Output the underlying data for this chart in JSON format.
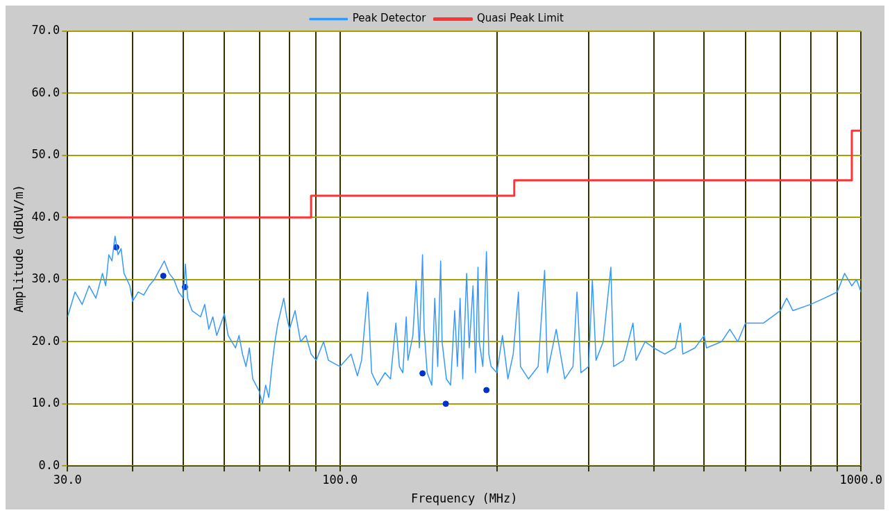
{
  "chart_data": {
    "type": "line",
    "xlabel": "Frequency (MHz)",
    "ylabel": "Amplitude (dBuV/m)",
    "log": "x",
    "grid": true,
    "legend": "top",
    "xlim": [
      30,
      1000
    ],
    "ylim": [
      0,
      70
    ],
    "xticks": [
      {
        "value": 30,
        "label": "30.0"
      },
      {
        "value": 40,
        "label": null
      },
      {
        "value": 50,
        "label": null
      },
      {
        "value": 60,
        "label": null
      },
      {
        "value": 70,
        "label": null
      },
      {
        "value": 80,
        "label": null
      },
      {
        "value": 90,
        "label": null
      },
      {
        "value": 100,
        "label": "100.0"
      },
      {
        "value": 200,
        "label": null
      },
      {
        "value": 300,
        "label": null
      },
      {
        "value": 400,
        "label": null
      },
      {
        "value": 500,
        "label": null
      },
      {
        "value": 600,
        "label": null
      },
      {
        "value": 700,
        "label": null
      },
      {
        "value": 800,
        "label": null
      },
      {
        "value": 900,
        "label": null
      },
      {
        "value": 1000,
        "label": "1000.0"
      }
    ],
    "yticks": [
      {
        "value": 0,
        "label": "0.0"
      },
      {
        "value": 10,
        "label": "10.0"
      },
      {
        "value": 20,
        "label": "20.0"
      },
      {
        "value": 30,
        "label": "30.0"
      },
      {
        "value": 40,
        "label": "40.0"
      },
      {
        "value": 50,
        "label": "50.0"
      },
      {
        "value": 60,
        "label": "60.0"
      },
      {
        "value": 70,
        "label": "70.0"
      }
    ],
    "series": [
      {
        "name": "Peak Detector",
        "type": "line",
        "color": "#3399ff",
        "marker": "none",
        "x": [
          30,
          31,
          32,
          33,
          34,
          35,
          35.5,
          36,
          36.5,
          37,
          37.5,
          38,
          38.5,
          39.5,
          40,
          41,
          42,
          43,
          44,
          45,
          46,
          47,
          48,
          49,
          50,
          50.5,
          51,
          52,
          54,
          55,
          56,
          57,
          58,
          60,
          61,
          63,
          64,
          65,
          66,
          67,
          68,
          70,
          71,
          72,
          73,
          74,
          75,
          76,
          78,
          79,
          80,
          82,
          84,
          86,
          88,
          90,
          93,
          95,
          100,
          105,
          108,
          110,
          113,
          115,
          118,
          122,
          125,
          128,
          130,
          132,
          134,
          135,
          138,
          140,
          142,
          144,
          145,
          147,
          150,
          152,
          154,
          156,
          157,
          160,
          163,
          166,
          168,
          170,
          172,
          175,
          177,
          180,
          182,
          184,
          185,
          188,
          191,
          193,
          195,
          200,
          205,
          210,
          215,
          220,
          222,
          230,
          240,
          247,
          250,
          260,
          270,
          280,
          285,
          290,
          300,
          305,
          310,
          320,
          331,
          335,
          350,
          365,
          370,
          385,
          400,
          420,
          440,
          450,
          455,
          480,
          500,
          505,
          540,
          560,
          580,
          600,
          650,
          700,
          720,
          740,
          800,
          850,
          900,
          930,
          960,
          980,
          1000
        ],
        "values": [
          24,
          28,
          26,
          29,
          27,
          31,
          29,
          34,
          33,
          37,
          34,
          35,
          31,
          29,
          26.5,
          28,
          27.5,
          29,
          30,
          31.5,
          33,
          31,
          30,
          28,
          27,
          32.5,
          27,
          25,
          24,
          26,
          22,
          24,
          21,
          24.5,
          21,
          19,
          21,
          18,
          16,
          19,
          14,
          12,
          10,
          13,
          11,
          16,
          20,
          23,
          27,
          24,
          22,
          25,
          20,
          21,
          18,
          17,
          20,
          17,
          16,
          18,
          14.5,
          17,
          28,
          15,
          13,
          15,
          14,
          23,
          16,
          15,
          24,
          17,
          21,
          30,
          19,
          34,
          22,
          15,
          13,
          27,
          16,
          33,
          20,
          14,
          13,
          25,
          16,
          27,
          14,
          31,
          19,
          29,
          15,
          32,
          20,
          16,
          34.5,
          18,
          16,
          15,
          21,
          14,
          18,
          28,
          16,
          14,
          16,
          31.5,
          15,
          22,
          14,
          16,
          28,
          15,
          16,
          30,
          17,
          20,
          32,
          16,
          17,
          23,
          17,
          20,
          19,
          18,
          19,
          23,
          18,
          19,
          21,
          19,
          20,
          22,
          20,
          23,
          23,
          25,
          27,
          25,
          26,
          27,
          28,
          31,
          29,
          30,
          28
        ]
      },
      {
        "name": "Quasi Peak Limit",
        "type": "step",
        "color": "#ff3333",
        "marker": "none",
        "x": [
          30,
          88,
          216,
          960,
          1000
        ],
        "values": [
          40,
          43.5,
          46,
          54,
          54
        ]
      },
      {
        "type": "scatter",
        "color": "#0033cc",
        "marker": "circle",
        "x": [
          37.2,
          45.8,
          50.4,
          144,
          159.6,
          191
        ],
        "values": [
          35.2,
          30.6,
          28.8,
          14.9,
          10,
          12.2
        ]
      }
    ]
  }
}
